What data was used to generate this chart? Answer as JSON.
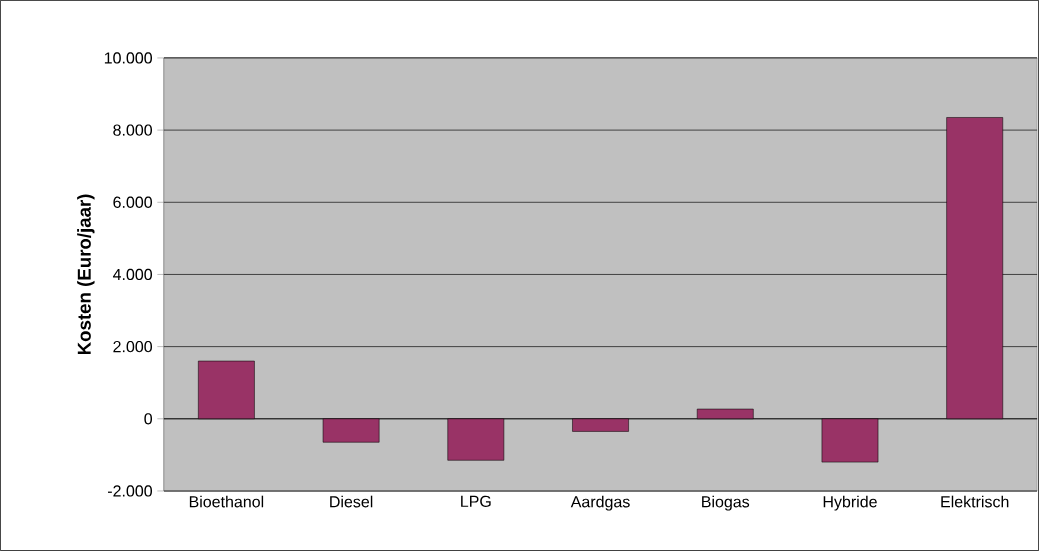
{
  "chart_data": {
    "type": "bar",
    "ylabel": "Kosten (Euro/jaar)",
    "categories": [
      "Bioethanol",
      "Diesel",
      "LPG",
      "Aardgas",
      "Biogas",
      "Hybride",
      "Elektrisch"
    ],
    "values": [
      1600,
      -650,
      -1150,
      -350,
      270,
      -1200,
      8350
    ],
    "color": "#993366",
    "ylim": [
      -2000,
      10000
    ],
    "yticks": [
      {
        "value": -2000,
        "label": "-2.000"
      },
      {
        "value": 0,
        "label": "0"
      },
      {
        "value": 2000,
        "label": "2.000"
      },
      {
        "value": 4000,
        "label": "4.000"
      },
      {
        "value": 6000,
        "label": "6.000"
      },
      {
        "value": 8000,
        "label": "8.000"
      },
      {
        "value": 10000,
        "label": "10.000"
      }
    ],
    "grid": "y"
  }
}
